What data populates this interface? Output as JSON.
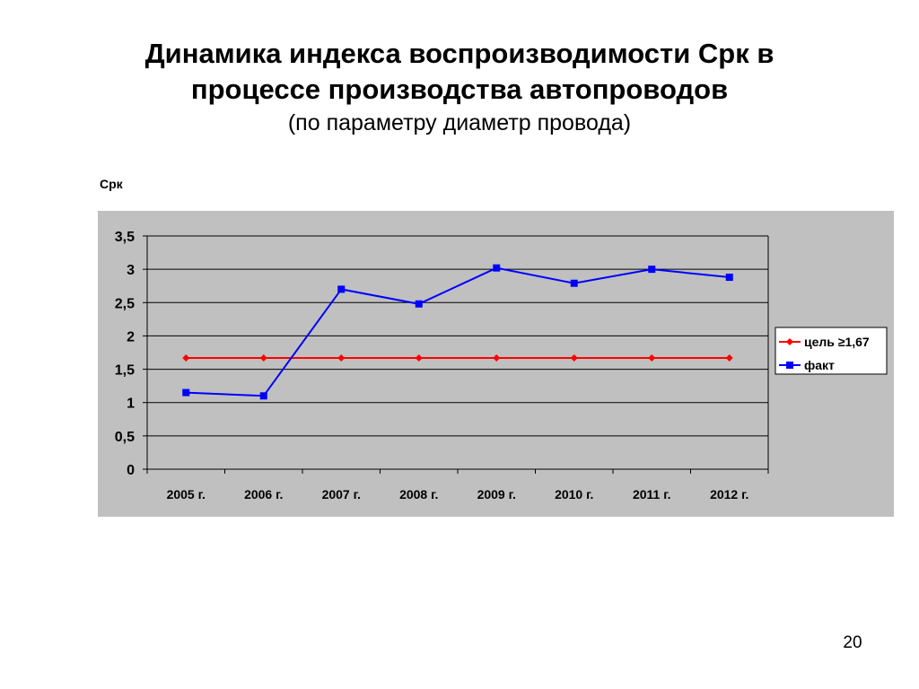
{
  "title": {
    "line1": "Динамика индекса воспроизводимости Срк в",
    "line2": "процессе производства автопроводов",
    "subtitle": "(по параметру диаметр провода)"
  },
  "page_number": "20",
  "colors": {
    "plot_background": "#c0c0c0",
    "series_target": "#ff0000",
    "series_fact": "#0000ff",
    "gridline": "#000000",
    "legend_background": "#ffffff"
  },
  "chart_data": {
    "type": "line",
    "ylabel": "Срк",
    "xlabel": "",
    "categories": [
      "2005 г.",
      "2006 г.",
      "2007 г.",
      "2008 г.",
      "2009 г.",
      "2010 г.",
      "2011 г.",
      "2012 г."
    ],
    "ylim": [
      0,
      3.5
    ],
    "yticks": [
      0,
      0.5,
      1,
      1.5,
      2,
      2.5,
      3,
      3.5
    ],
    "ytick_labels": [
      "0",
      "0,5",
      "1",
      "1,5",
      "2",
      "2,5",
      "3",
      "3,5"
    ],
    "grid": true,
    "legend_position": "right",
    "series": [
      {
        "name": "цель ≥1,67",
        "marker": "diamond",
        "values": [
          1.67,
          1.67,
          1.67,
          1.67,
          1.67,
          1.67,
          1.67,
          1.67
        ]
      },
      {
        "name": "факт",
        "marker": "square",
        "values": [
          1.15,
          1.1,
          2.7,
          2.48,
          3.02,
          2.79,
          3.0,
          2.88
        ]
      }
    ]
  }
}
